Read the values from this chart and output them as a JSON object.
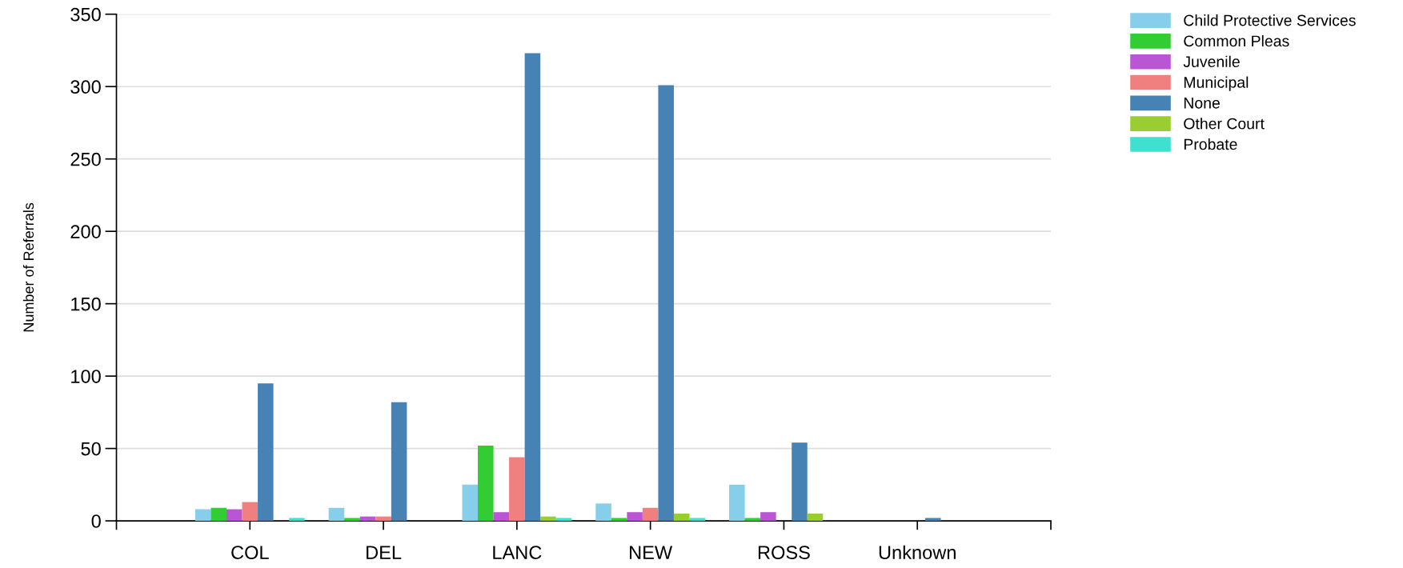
{
  "chart_data": {
    "type": "bar",
    "ylabel": "Number of Referrals",
    "categories": [
      "COL",
      "DEL",
      "LANC",
      "NEW",
      "ROSS",
      "Unknown"
    ],
    "series": [
      {
        "name": "Child Protective Services",
        "color": "#87ceeb",
        "values": [
          8,
          9,
          25,
          12,
          25,
          0
        ]
      },
      {
        "name": "Common Pleas",
        "color": "#32cd32",
        "values": [
          9,
          2,
          52,
          2,
          2,
          0
        ]
      },
      {
        "name": "Juvenile",
        "color": "#ba55d3",
        "values": [
          8,
          3,
          6,
          6,
          6,
          0
        ]
      },
      {
        "name": "Municipal",
        "color": "#f08080",
        "values": [
          13,
          3,
          44,
          9,
          0,
          0
        ]
      },
      {
        "name": "None",
        "color": "#4682b4",
        "values": [
          95,
          82,
          323,
          301,
          54,
          2
        ]
      },
      {
        "name": "Other Court",
        "color": "#9acd32",
        "values": [
          0,
          0,
          3,
          5,
          5,
          0
        ]
      },
      {
        "name": "Probate",
        "color": "#40e0d0",
        "values": [
          2,
          0,
          2,
          2,
          0,
          0
        ]
      }
    ],
    "ylim": [
      0,
      350
    ],
    "yticks": [
      0,
      50,
      100,
      150,
      200,
      250,
      300,
      350
    ],
    "grid": "y",
    "legend": "top right"
  }
}
